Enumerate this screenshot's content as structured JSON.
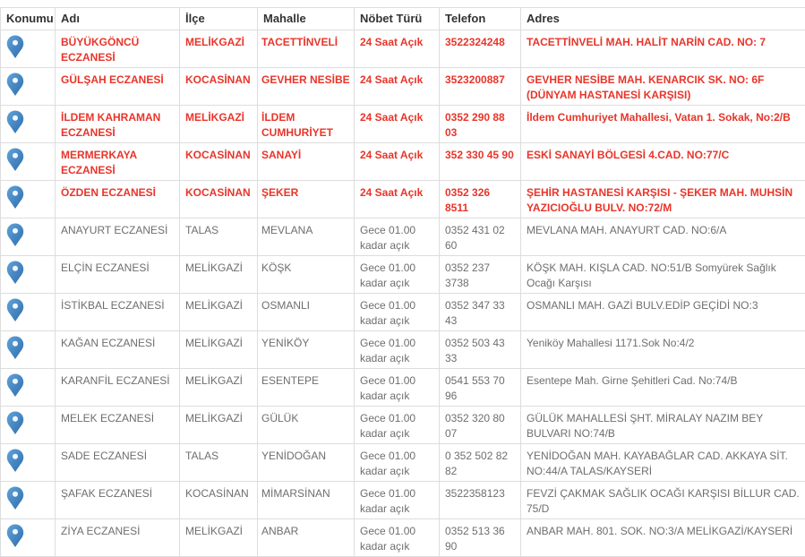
{
  "table": {
    "columns": [
      {
        "key": "location",
        "label": "Konumu"
      },
      {
        "key": "name",
        "label": "Adı"
      },
      {
        "key": "district",
        "label": "İlçe"
      },
      {
        "key": "neighborhood",
        "label": "Mahalle"
      },
      {
        "key": "duty",
        "label": "Nöbet Türü"
      },
      {
        "key": "phone",
        "label": "Telefon"
      },
      {
        "key": "address",
        "label": "Adres"
      }
    ],
    "rows": [
      {
        "name": "BÜYÜKGÖNCÜ ECZANESİ",
        "district": "MELİKGAZİ",
        "neighborhood": "TACETTİNVELİ",
        "duty": "24 Saat Açık",
        "phone": "3522324248",
        "address": "TACETTİNVELİ MAH. HALİT NARİN CAD. NO: 7",
        "highlight": true
      },
      {
        "name": "GÜLŞAH ECZANESİ",
        "district": "KOCASİNAN",
        "neighborhood": "GEVHER NESİBE",
        "duty": "24 Saat Açık",
        "phone": "3523200887",
        "address": "GEVHER NESİBE MAH. KENARCIK SK. NO: 6F (DÜNYAM HASTANESİ KARŞISI)",
        "highlight": true
      },
      {
        "name": "İLDEM KAHRAMAN ECZANESİ",
        "district": "MELİKGAZİ",
        "neighborhood": "İLDEM CUMHURİYET",
        "duty": "24 Saat Açık",
        "phone": "0352 290 88 03",
        "address": "İldem Cumhuriyet Mahallesi, Vatan 1. Sokak, No:2/B",
        "highlight": true
      },
      {
        "name": "MERMERKAYA ECZANESİ",
        "district": "KOCASİNAN",
        "neighborhood": "SANAYİ",
        "duty": "24 Saat Açık",
        "phone": "352 330 45 90",
        "address": "ESKİ SANAYİ BÖLGESİ 4.CAD. NO:77/C",
        "highlight": true
      },
      {
        "name": "ÖZDEN ECZANESİ",
        "district": "KOCASİNAN",
        "neighborhood": "ŞEKER",
        "duty": "24 Saat Açık",
        "phone": "0352 326 8511",
        "address": "ŞEHİR HASTANESİ KARŞISI - ŞEKER MAH. MUHSİN YAZICIOĞLU BULV. NO:72/M",
        "highlight": true
      },
      {
        "name": "ANAYURT ECZANESİ",
        "district": "TALAS",
        "neighborhood": "MEVLANA",
        "duty": "Gece 01.00 kadar açık",
        "phone": "0352 431 02 60",
        "address": "MEVLANA MAH. ANAYURT CAD. NO:6/A",
        "highlight": false
      },
      {
        "name": "ELÇİN ECZANESİ",
        "district": "MELİKGAZİ",
        "neighborhood": "KÖŞK",
        "duty": "Gece 01.00 kadar açık",
        "phone": "0352 237 3738",
        "address": "KÖŞK MAH. KIŞLA CAD. NO:51/B Somyürek Sağlık Ocağı Karşısı",
        "highlight": false
      },
      {
        "name": "İSTİKBAL ECZANESİ",
        "district": "MELİKGAZİ",
        "neighborhood": "OSMANLI",
        "duty": "Gece 01.00 kadar açık",
        "phone": "0352 347 33 43",
        "address": "OSMANLI MAH. GAZİ BULV.EDİP GEÇİDİ NO:3",
        "highlight": false
      },
      {
        "name": "KAĞAN ECZANESİ",
        "district": "MELİKGAZİ",
        "neighborhood": "YENİKÖY",
        "duty": "Gece 01.00 kadar açık",
        "phone": "0352 503 43 33",
        "address": "Yeniköy Mahallesi 1171.Sok No:4/2",
        "highlight": false
      },
      {
        "name": "KARANFİL ECZANESİ",
        "district": "MELİKGAZİ",
        "neighborhood": "ESENTEPE",
        "duty": "Gece 01.00 kadar açık",
        "phone": "0541 553 70 96",
        "address": "Esentepe Mah. Girne Şehitleri Cad. No:74/B",
        "highlight": false
      },
      {
        "name": "MELEK ECZANESİ",
        "district": "MELİKGAZİ",
        "neighborhood": "GÜLÜK",
        "duty": "Gece 01.00 kadar açık",
        "phone": "0352 320 80 07",
        "address": "GÜLÜK MAHALLESİ ŞHT. MİRALAY NAZIM BEY BULVARI NO:74/B",
        "highlight": false
      },
      {
        "name": "SADE ECZANESİ",
        "district": "TALAS",
        "neighborhood": "YENİDOĞAN",
        "duty": "Gece 01.00 kadar açık",
        "phone": "0 352 502 82 82",
        "address": "YENİDOĞAN MAH. KAYABAĞLAR CAD. AKKAYA SİT. NO:44/A TALAS/KAYSERİ",
        "highlight": false
      },
      {
        "name": "ŞAFAK ECZANESİ",
        "district": "KOCASİNAN",
        "neighborhood": "MİMARSİNAN",
        "duty": "Gece 01.00 kadar açık",
        "phone": "3522358123",
        "address": "FEVZİ ÇAKMAK SAĞLIK OCAĞI KARŞISI BİLLUR CAD. 75/D",
        "highlight": false
      },
      {
        "name": "ZİYA ECZANESİ",
        "district": "MELİKGAZİ",
        "neighborhood": "ANBAR",
        "duty": "Gece 01.00 kadar açık",
        "phone": "0352 513 36 90",
        "address": "ANBAR MAH. 801. SOK. NO:3/A MELİKGAZİ/KAYSERİ",
        "highlight": false
      }
    ]
  },
  "icons": {
    "map_pin": "map-pin-icon"
  },
  "colors": {
    "highlight_red": "#e8352a",
    "pin_blue_light": "#60a3da",
    "pin_blue_dark": "#2e6cab",
    "border": "#dddddd",
    "row_text": "#6e6e6e",
    "header_text": "#333333"
  }
}
